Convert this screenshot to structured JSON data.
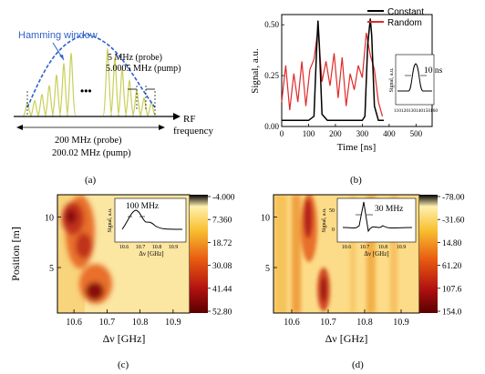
{
  "panel_a": {
    "caption": "(a)",
    "window_label": "Hamming window",
    "tone_spacing": [
      "5 MHz (probe)",
      "5.0005 MHz (pump)"
    ],
    "dots": "•••",
    "axis_label": [
      "RF",
      "frequency"
    ],
    "span": [
      "200 MHz (probe)",
      "200.02 MHz (pump)"
    ],
    "colors": {
      "window": "#2f62c6",
      "tones": "#c8d05a"
    }
  },
  "panel_b": {
    "caption": "(b)",
    "inset_label": "10 ns",
    "inset_ylabel": "Signal, a.u.",
    "inset_x_ticks": [
      "110",
      "120",
      "130",
      "140",
      "150",
      "160"
    ],
    "colors": {
      "constant": "#000000",
      "random": "#e02a2a"
    },
    "chart_data": {
      "type": "line",
      "xlabel": "Time [ns]",
      "ylabel": "Signal, a.u.",
      "xlim": [
        0,
        560
      ],
      "ylim": [
        0,
        0.55
      ],
      "x_ticks": [
        "0",
        "100",
        "200",
        "300",
        "400",
        "500"
      ],
      "y_ticks": [
        "0.00",
        "0.25",
        "0.50"
      ],
      "legend_position": "top-right",
      "series": [
        {
          "name": "Constant",
          "x": [
            0,
            100,
            120,
            130,
            135,
            140,
            150,
            170,
            300,
            310,
            320,
            330,
            335,
            345,
            360,
            380
          ],
          "y": [
            0.03,
            0.03,
            0.05,
            0.38,
            0.52,
            0.4,
            0.06,
            0.03,
            0.03,
            0.05,
            0.4,
            0.53,
            0.45,
            0.1,
            0.03,
            0.03
          ]
        },
        {
          "name": "Random",
          "x": [
            0,
            15,
            30,
            45,
            60,
            75,
            90,
            105,
            120,
            135,
            150,
            165,
            180,
            195,
            210,
            225,
            240,
            255,
            270,
            285,
            300,
            315,
            330,
            345,
            360,
            375
          ],
          "y": [
            0.12,
            0.3,
            0.08,
            0.26,
            0.12,
            0.32,
            0.1,
            0.28,
            0.33,
            0.48,
            0.22,
            0.32,
            0.2,
            0.36,
            0.14,
            0.34,
            0.1,
            0.26,
            0.18,
            0.3,
            0.24,
            0.46,
            0.35,
            0.28,
            0.12,
            0.05
          ]
        }
      ]
    }
  },
  "panel_c": {
    "caption": "(c)",
    "xlabel": "Δν [GHz]",
    "ylabel": "Position [m]",
    "x_ticks": [
      "10.6",
      "10.7",
      "10.8",
      "10.9"
    ],
    "y_ticks": [
      "10",
      "5"
    ],
    "colorbar_ticks": [
      "-4.000",
      "7.360",
      "18.72",
      "30.08",
      "41.44",
      "52.80"
    ],
    "inset_label": "100 MHz",
    "inset_ylabel": "Signal, a.u.",
    "inset_xlabel": "Δν [GHz]",
    "inset_x_ticks": [
      "10.6",
      "10.7",
      "10.8",
      "10.9"
    ]
  },
  "panel_d": {
    "caption": "(d)",
    "xlabel": "Δν [GHz]",
    "x_ticks": [
      "10.6",
      "10.7",
      "10.8",
      "10.9"
    ],
    "y_ticks": [
      "10",
      "5"
    ],
    "colorbar_ticks": [
      "-78.00",
      "-31.60",
      "14.80",
      "61.20",
      "107.6",
      "154.0"
    ],
    "inset_label": "30 MHz",
    "inset_ylabel": "Signal, a.u.",
    "inset_y_ticks": [
      "50",
      "0"
    ],
    "inset_xlabel": "Δν [GHz]",
    "inset_x_ticks": [
      "10.6",
      "10.7",
      "10.8",
      "10.9"
    ]
  }
}
